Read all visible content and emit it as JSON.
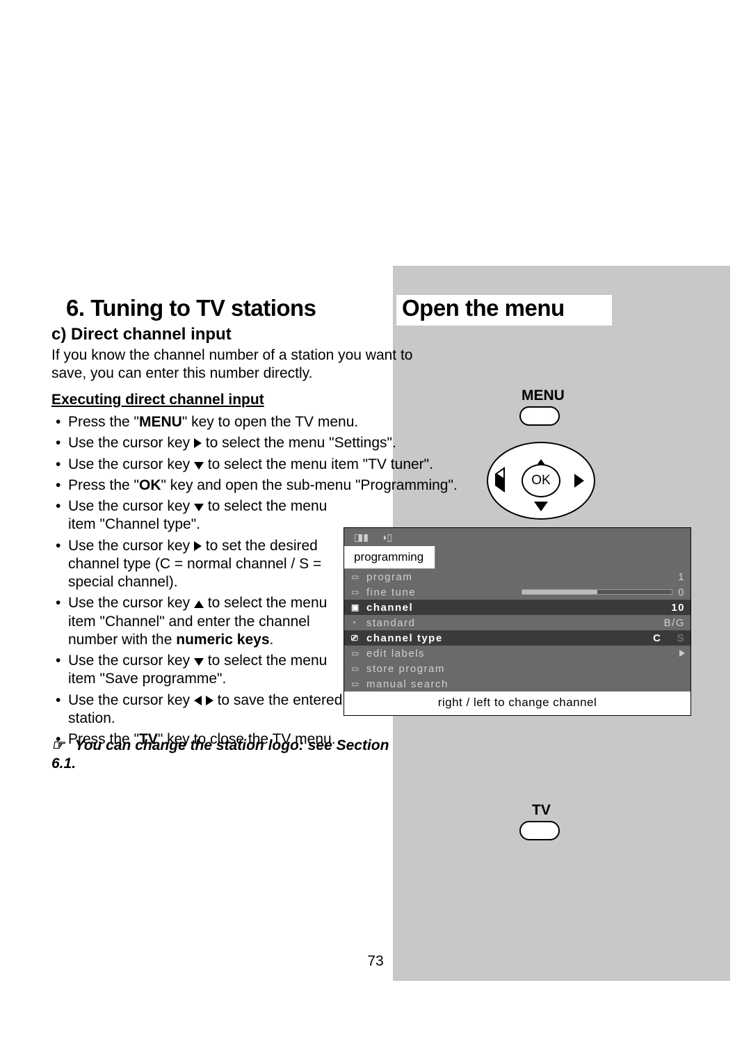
{
  "title_left": "6. Tuning to TV stations",
  "title_right": "Open the menu",
  "subheading": "c) Direct channel input",
  "intro": "If you know the channel number of a station you want to save, you can enter this number directly.",
  "exec_heading": "Executing direct channel input",
  "instructions": [
    {
      "pre": "Press the \"",
      "bold": "MENU",
      "post": "\" key to open the TV menu."
    },
    {
      "arrow": "right",
      "text1": "Use the cursor key ",
      "text2": " to select the menu \"Settings\"."
    },
    {
      "arrow": "down",
      "text1": "Use the cursor key ",
      "text2": " to select the menu item \"TV tuner\"."
    },
    {
      "pre": "Press the \"",
      "bold": "OK",
      "post": "\" key and open the sub-menu \"Programming\"."
    },
    {
      "arrow": "down",
      "short": true,
      "text1": "Use the cursor key ",
      "text2": " to select the menu item \"Channel type\"."
    },
    {
      "arrow": "right",
      "short": true,
      "text1": "Use the cursor key ",
      "text2": " to set the desired channel type (C = normal channel / S = special channel)."
    },
    {
      "arrow": "up",
      "short": true,
      "text1": "Use the cursor key ",
      "text2": " to select the menu item \"Channel\" and enter the channel number with the ",
      "bold2": "numeric keys",
      "post2": "."
    },
    {
      "arrow": "down",
      "short": true,
      "text1": "Use the cursor key ",
      "text2": " to select the menu item \"Save programme\"."
    },
    {
      "arrow": "leftright",
      "short": true,
      "text1": "Use the cursor key ",
      "text2": " to save the entered station."
    },
    {
      "pre": "Press the \"",
      "bold": "TV",
      "post": "\" key to close the TV menu."
    }
  ],
  "note_icon": "☞",
  "note": "You can change the station logo: see Section 6.1.",
  "menu_label": "MENU",
  "tv_label": "TV",
  "ok_label": "OK",
  "osd": {
    "tab": "programming",
    "rows": [
      {
        "icon": "▭",
        "label": "program",
        "value": "1"
      },
      {
        "icon": "▭",
        "label": "fine tune",
        "slider": 50,
        "value": "0"
      },
      {
        "icon": "▣",
        "label": "channel",
        "hl": true,
        "value": "10"
      },
      {
        "icon": "◔",
        "label": "standard",
        "value": "B/G"
      },
      {
        "icon": "⎚",
        "label": "channel type",
        "hl": true,
        "ct": true
      },
      {
        "icon": "▭",
        "label": "edit labels",
        "arrow": true
      },
      {
        "icon": "▭",
        "label": "store program"
      },
      {
        "icon": "▭",
        "label": "manual search"
      }
    ],
    "ct_c": "C",
    "ct_s": "S",
    "hint": "right / left to change channel"
  },
  "page_number": "73",
  "colors": {
    "gray_block": "#c8c8c8",
    "osd_bg": "#6a6a6a",
    "osd_hl": "#3a3a3a"
  }
}
